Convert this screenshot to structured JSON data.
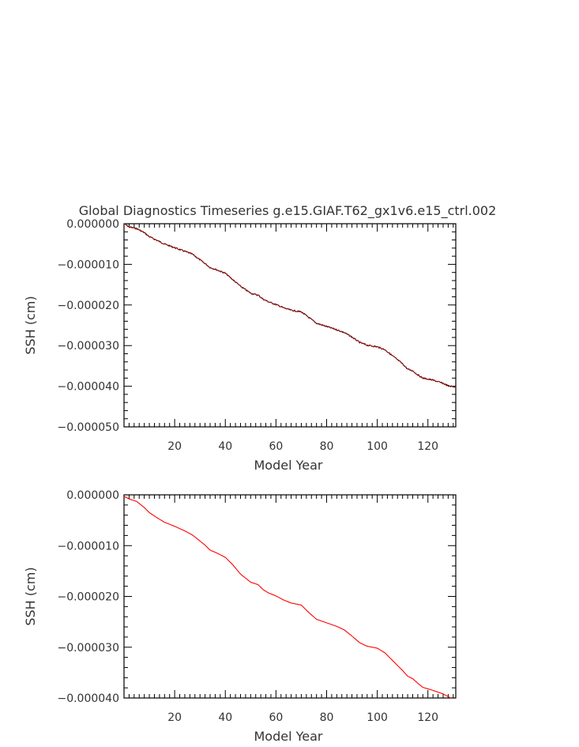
{
  "chart_data": [
    {
      "type": "line",
      "title": "Global Diagnostics Timeseries g.e15.GIAF.T62_gx1v6.e15_ctrl.002",
      "xlabel": "Model Year",
      "ylabel": "SSH (cm)",
      "xlim": [
        0,
        131
      ],
      "ylim": [
        -5e-05,
        0.0
      ],
      "xticks": [
        20,
        40,
        60,
        80,
        100,
        120
      ],
      "xtick_labels": [
        "20",
        "40",
        "60",
        "80",
        "100",
        "120"
      ],
      "yticks": [
        0.0,
        -1e-05,
        -2e-05,
        -3e-05,
        -4e-05,
        -5e-05
      ],
      "ytick_labels": [
        "0.000000",
        "−0.000010",
        "−0.000020",
        "−0.000030",
        "−0.000040",
        "−0.000050"
      ],
      "grid": false,
      "series": [
        {
          "color": "#7a0f0f",
          "noisy": true,
          "x": [
            0,
            2,
            5,
            8,
            10,
            13,
            16,
            20,
            24,
            27,
            30,
            32,
            34,
            36,
            40,
            43,
            46,
            50,
            53,
            55,
            57,
            60,
            63,
            66,
            70,
            73,
            76,
            80,
            84,
            87,
            90,
            93,
            96,
            100,
            103,
            106,
            110,
            112,
            114,
            116,
            118,
            122,
            126,
            128,
            131
          ],
          "y": [
            0.0,
            -8e-07,
            -1.2e-06,
            -2.2e-06,
            -3.2e-06,
            -4.1e-06,
            -5e-06,
            -5.9e-06,
            -6.8e-06,
            -7.5e-06,
            -8.9e-06,
            -9.8e-06,
            -1.08e-05,
            -1.12e-05,
            -1.22e-05,
            -1.38e-05,
            -1.54e-05,
            -1.71e-05,
            -1.76e-05,
            -1.86e-05,
            -1.92e-05,
            -1.99e-05,
            -2.07e-05,
            -2.13e-05,
            -2.17e-05,
            -2.31e-05,
            -2.45e-05,
            -2.53e-05,
            -2.61e-05,
            -2.68e-05,
            -2.79e-05,
            -2.92e-05,
            -2.99e-05,
            -3.03e-05,
            -3.1e-05,
            -3.25e-05,
            -3.45e-05,
            -3.58e-05,
            -3.62e-05,
            -3.72e-05,
            -3.8e-05,
            -3.85e-05,
            -3.93e-05,
            -3.99e-05,
            -4.02e-05
          ]
        }
      ]
    },
    {
      "type": "line",
      "title": "",
      "xlabel": "Model Year",
      "ylabel": "SSH (cm)",
      "xlim": [
        0,
        131
      ],
      "ylim": [
        -4e-05,
        0.0
      ],
      "xticks": [
        20,
        40,
        60,
        80,
        100,
        120
      ],
      "xtick_labels": [
        "20",
        "40",
        "60",
        "80",
        "100",
        "120"
      ],
      "yticks": [
        0.0,
        -1e-05,
        -2e-05,
        -3e-05,
        -4e-05
      ],
      "ytick_labels": [
        "0.000000",
        "−0.000010",
        "−0.000020",
        "−0.000030",
        "−0.000040"
      ],
      "grid": false,
      "series": [
        {
          "color": "#ff0000",
          "noisy": false,
          "x": [
            0,
            2,
            5,
            8,
            10,
            13,
            16,
            20,
            24,
            27,
            30,
            32,
            34,
            36,
            40,
            43,
            46,
            50,
            53,
            55,
            57,
            60,
            63,
            66,
            70,
            73,
            76,
            80,
            84,
            87,
            90,
            93,
            96,
            100,
            103,
            106,
            110,
            112,
            114,
            116,
            118,
            122,
            126,
            129
          ],
          "y": [
            -3e-07,
            -8e-07,
            -1.3e-06,
            -2.5e-06,
            -3.5e-06,
            -4.5e-06,
            -5.4e-06,
            -6.2e-06,
            -7.1e-06,
            -7.9e-06,
            -9.1e-06,
            -9.9e-06,
            -1.09e-05,
            -1.13e-05,
            -1.23e-05,
            -1.38e-05,
            -1.56e-05,
            -1.72e-05,
            -1.77e-05,
            -1.87e-05,
            -1.93e-05,
            -1.99e-05,
            -2.07e-05,
            -2.13e-05,
            -2.17e-05,
            -2.32e-05,
            -2.45e-05,
            -2.52e-05,
            -2.59e-05,
            -2.66e-05,
            -2.78e-05,
            -2.91e-05,
            -2.98e-05,
            -3.02e-05,
            -3.11e-05,
            -3.26e-05,
            -3.46e-05,
            -3.57e-05,
            -3.62e-05,
            -3.71e-05,
            -3.79e-05,
            -3.85e-05,
            -3.92e-05,
            -4e-05
          ]
        }
      ]
    }
  ]
}
